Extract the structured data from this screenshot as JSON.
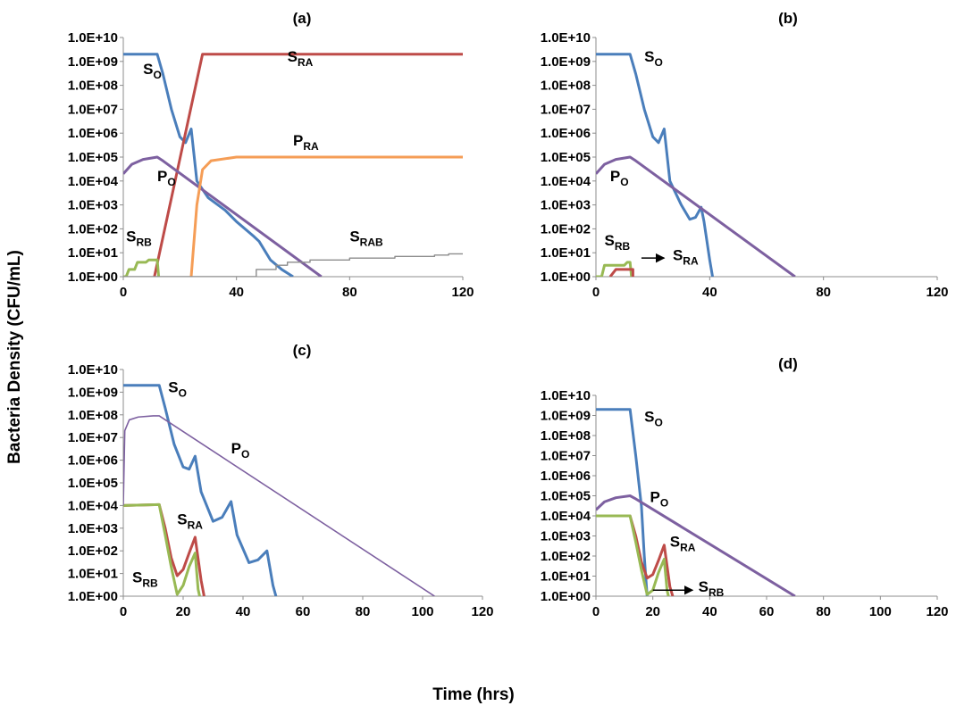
{
  "y_axis_title": "Bacteria Density (CFU/mL)",
  "x_axis_title": "Time (hrs)",
  "colors": {
    "SO": "#4a7ebb",
    "SRA": "#be4b48",
    "SRB": "#98b954",
    "PO": "#7d60a0",
    "PRA": "#f59d56",
    "SRAB": "#8c8c8c"
  },
  "chart_data": [
    {
      "type": "line",
      "panel": "(a)",
      "xlim": [
        0,
        120
      ],
      "xticks": [
        0,
        40,
        80,
        120
      ],
      "ylim": [
        1,
        10000000000
      ],
      "yscale": "log",
      "yticks": [
        "1.0E+00",
        "1.0E+01",
        "1.0E+02",
        "1.0E+03",
        "1.0E+04",
        "1.0E+05",
        "1.0E+06",
        "1.0E+07",
        "1.0E+08",
        "1.0E+09",
        "1.0E+10"
      ],
      "labels": [
        {
          "series": "SO",
          "base": "S",
          "sub": "O",
          "x": 7,
          "y": 300000000
        },
        {
          "series": "SRA",
          "base": "S",
          "sub": "RA",
          "x": 58,
          "y": 1000000000
        },
        {
          "series": "PRA",
          "base": "P",
          "sub": "RA",
          "x": 60,
          "y": 300000
        },
        {
          "series": "PO",
          "base": "P",
          "sub": "O",
          "x": 12,
          "y": 10000
        },
        {
          "series": "SRB",
          "base": "S",
          "sub": "RB",
          "x": 1,
          "y": 30
        },
        {
          "series": "SRAB",
          "base": "S",
          "sub": "RAB",
          "x": 80,
          "y": 30
        }
      ],
      "series": [
        {
          "key": "SO",
          "points": [
            [
              0,
              2000000000
            ],
            [
              12,
              2000000000
            ],
            [
              14,
              300000000
            ],
            [
              17,
              10000000
            ],
            [
              20,
              700000
            ],
            [
              22,
              400000
            ],
            [
              24,
              1500000
            ],
            [
              26,
              10000
            ],
            [
              30,
              2000
            ],
            [
              36,
              600
            ],
            [
              40,
              200
            ],
            [
              46,
              50
            ],
            [
              48,
              30
            ],
            [
              52,
              5
            ],
            [
              56,
              2
            ],
            [
              60,
              1
            ]
          ]
        },
        {
          "key": "SRA",
          "points": [
            [
              11,
              1
            ],
            [
              28,
              2000000000
            ],
            [
              120,
              2000000000
            ]
          ]
        },
        {
          "key": "SRB",
          "points": [
            [
              0,
              1
            ],
            [
              1,
              1
            ],
            [
              2,
              2
            ],
            [
              4,
              2
            ],
            [
              5,
              4
            ],
            [
              8,
              4
            ],
            [
              9,
              5
            ],
            [
              12,
              5
            ],
            [
              12.5,
              1
            ]
          ]
        },
        {
          "key": "PO",
          "points": [
            [
              0,
              20000
            ],
            [
              3,
              50000
            ],
            [
              7,
              80000
            ],
            [
              12,
              100000
            ],
            [
              14,
              70000
            ],
            [
              70,
              1
            ]
          ]
        },
        {
          "key": "PRA",
          "points": [
            [
              24,
              1
            ],
            [
              26,
              1000
            ],
            [
              28,
              30000
            ],
            [
              31,
              70000
            ],
            [
              40,
              100000
            ],
            [
              120,
              100000
            ]
          ]
        },
        {
          "key": "SRAB",
          "points": [
            [
              0,
              1
            ],
            [
              47,
              1
            ],
            [
              47,
              2
            ],
            [
              54,
              2
            ],
            [
              54,
              3
            ],
            [
              58,
              3
            ],
            [
              58,
              4
            ],
            [
              66,
              4
            ],
            [
              66,
              5
            ],
            [
              80,
              5
            ],
            [
              80,
              6
            ],
            [
              96,
              6
            ],
            [
              96,
              7
            ],
            [
              110,
              7
            ],
            [
              110,
              8
            ],
            [
              115,
              8
            ],
            [
              115,
              9
            ],
            [
              120,
              9
            ]
          ]
        }
      ]
    },
    {
      "type": "line",
      "panel": "(b)",
      "xlim": [
        0,
        120
      ],
      "xticks": [
        0,
        40,
        80,
        120
      ],
      "ylim": [
        1,
        10000000000
      ],
      "yscale": "log",
      "yticks": [
        "1.0E+00",
        "1.0E+01",
        "1.0E+02",
        "1.0E+03",
        "1.0E+04",
        "1.0E+05",
        "1.0E+06",
        "1.0E+07",
        "1.0E+08",
        "1.0E+09",
        "1.0E+10"
      ],
      "labels": [
        {
          "series": "SO",
          "base": "S",
          "sub": "O",
          "x": 17,
          "y": 1000000000
        },
        {
          "series": "PO",
          "base": "P",
          "sub": "O",
          "x": 5,
          "y": 10000
        },
        {
          "series": "SRB",
          "base": "S",
          "sub": "RB",
          "x": 3,
          "y": 20
        },
        {
          "series": "SRA",
          "base": "S",
          "sub": "RA",
          "x": 27,
          "y": 5
        }
      ],
      "arrows": [
        {
          "from": [
            16,
            6
          ],
          "to": [
            24,
            6
          ]
        }
      ],
      "series": [
        {
          "key": "SO",
          "points": [
            [
              0,
              2000000000
            ],
            [
              12,
              2000000000
            ],
            [
              14,
              300000000
            ],
            [
              17,
              10000000
            ],
            [
              20,
              700000
            ],
            [
              22,
              400000
            ],
            [
              24,
              1500000
            ],
            [
              26,
              10000
            ],
            [
              30,
              1000
            ],
            [
              33,
              250
            ],
            [
              35,
              300
            ],
            [
              37,
              800
            ],
            [
              38,
              200
            ],
            [
              40,
              5
            ],
            [
              41,
              1
            ]
          ]
        },
        {
          "key": "SRB",
          "points": [
            [
              0,
              1
            ],
            [
              2,
              1
            ],
            [
              3,
              3
            ],
            [
              10,
              3
            ],
            [
              11,
              4
            ],
            [
              12,
              4
            ],
            [
              12.5,
              1
            ]
          ]
        },
        {
          "key": "SRA",
          "points": [
            [
              5,
              1
            ],
            [
              7,
              2
            ],
            [
              13,
              2
            ],
            [
              13,
              1
            ]
          ]
        },
        {
          "key": "PO",
          "points": [
            [
              0,
              20000
            ],
            [
              3,
              50000
            ],
            [
              7,
              80000
            ],
            [
              12,
              100000
            ],
            [
              14,
              70000
            ],
            [
              70,
              1
            ]
          ]
        }
      ]
    },
    {
      "type": "line",
      "panel": "(c)",
      "xlim": [
        0,
        120
      ],
      "xticks": [
        0,
        20,
        40,
        60,
        80,
        100,
        120
      ],
      "ylim": [
        1,
        10000000000
      ],
      "yscale": "log",
      "yticks": [
        "1.0E+00",
        "1.0E+01",
        "1.0E+02",
        "1.0E+03",
        "1.0E+04",
        "1.0E+05",
        "1.0E+06",
        "1.0E+07",
        "1.0E+08",
        "1.0E+09",
        "1.0E+10"
      ],
      "labels": [
        {
          "series": "SO",
          "base": "S",
          "sub": "O",
          "x": 15,
          "y": 1000000000
        },
        {
          "series": "PO",
          "base": "P",
          "sub": "O",
          "x": 36,
          "y": 2000000
        },
        {
          "series": "SRA",
          "base": "S",
          "sub": "RA",
          "x": 18,
          "y": 1500
        },
        {
          "series": "SRB",
          "base": "S",
          "sub": "RB",
          "x": 3,
          "y": 4
        }
      ],
      "series": [
        {
          "key": "SO",
          "points": [
            [
              0,
              2000000000
            ],
            [
              12,
              2000000000
            ],
            [
              14,
              200000000
            ],
            [
              17,
              5000000
            ],
            [
              20,
              500000
            ],
            [
              22,
              400000
            ],
            [
              24,
              1500000
            ],
            [
              26,
              40000
            ],
            [
              30,
              2000
            ],
            [
              33,
              3000
            ],
            [
              36,
              15000
            ],
            [
              38,
              500
            ],
            [
              42,
              30
            ],
            [
              45,
              40
            ],
            [
              48,
              100
            ],
            [
              50,
              3
            ],
            [
              51,
              1
            ]
          ]
        },
        {
          "key": "SRA",
          "points": [
            [
              0,
              10000
            ],
            [
              12,
              11000
            ],
            [
              14,
              1000
            ],
            [
              16,
              50
            ],
            [
              18,
              8
            ],
            [
              20,
              15
            ],
            [
              22,
              80
            ],
            [
              24,
              400
            ],
            [
              26,
              5
            ],
            [
              27,
              1
            ]
          ]
        },
        {
          "key": "SRB",
          "points": [
            [
              0,
              10000
            ],
            [
              12,
              11000
            ],
            [
              14,
              500
            ],
            [
              16,
              20
            ],
            [
              18,
              1.2
            ],
            [
              20,
              3
            ],
            [
              22,
              20
            ],
            [
              24,
              80
            ],
            [
              25,
              2
            ],
            [
              25.5,
              1
            ]
          ]
        },
        {
          "key": "PO",
          "thin": true,
          "points": [
            [
              0,
              10000
            ],
            [
              0.5,
              20000000
            ],
            [
              2,
              60000000
            ],
            [
              5,
              80000000
            ],
            [
              10,
              90000000
            ],
            [
              12,
              90000000
            ],
            [
              104,
              1
            ]
          ]
        }
      ]
    },
    {
      "type": "line",
      "panel": "(d)",
      "xlim": [
        0,
        120
      ],
      "xticks": [
        0,
        20,
        40,
        60,
        80,
        100,
        120
      ],
      "ylim": [
        1,
        10000000000
      ],
      "yscale": "log",
      "yticks": [
        "1.0E+00",
        "1.0E+01",
        "1.0E+02",
        "1.0E+03",
        "1.0E+04",
        "1.0E+05",
        "1.0E+06",
        "1.0E+07",
        "1.0E+08",
        "1.0E+09",
        "1.0E+10"
      ],
      "labels": [
        {
          "series": "SO",
          "base": "S",
          "sub": "O",
          "x": 17,
          "y": 500000000
        },
        {
          "series": "PO",
          "base": "P",
          "sub": "O",
          "x": 19,
          "y": 50000
        },
        {
          "series": "SRA",
          "base": "S",
          "sub": "RA",
          "x": 26,
          "y": 300
        },
        {
          "series": "SRB",
          "base": "S",
          "sub": "RB",
          "x": 36,
          "y": 1.7
        }
      ],
      "arrows": [
        {
          "from": [
            20,
            2
          ],
          "to": [
            34,
            2
          ]
        }
      ],
      "series": [
        {
          "key": "SO",
          "points": [
            [
              0,
              2000000000
            ],
            [
              12,
              2000000000
            ],
            [
              14,
              10000000
            ],
            [
              16,
              30000
            ],
            [
              17,
              100
            ],
            [
              18,
              1
            ]
          ]
        },
        {
          "key": "SRA",
          "points": [
            [
              0,
              10000
            ],
            [
              12,
              10000
            ],
            [
              14,
              1000
            ],
            [
              16,
              50
            ],
            [
              18,
              8
            ],
            [
              20,
              12
            ],
            [
              22,
              60
            ],
            [
              24,
              350
            ],
            [
              26,
              3
            ],
            [
              27,
              1
            ]
          ]
        },
        {
          "key": "SRB",
          "points": [
            [
              0,
              10000
            ],
            [
              12,
              10000
            ],
            [
              14,
              500
            ],
            [
              16,
              20
            ],
            [
              18,
              1.2
            ],
            [
              20,
              2
            ],
            [
              22,
              15
            ],
            [
              24,
              70
            ],
            [
              25,
              2
            ],
            [
              25.5,
              1
            ]
          ]
        },
        {
          "key": "PO",
          "points": [
            [
              0,
              20000
            ],
            [
              3,
              50000
            ],
            [
              7,
              80000
            ],
            [
              12,
              100000
            ],
            [
              14,
              70000
            ],
            [
              70,
              1
            ]
          ]
        }
      ]
    }
  ]
}
